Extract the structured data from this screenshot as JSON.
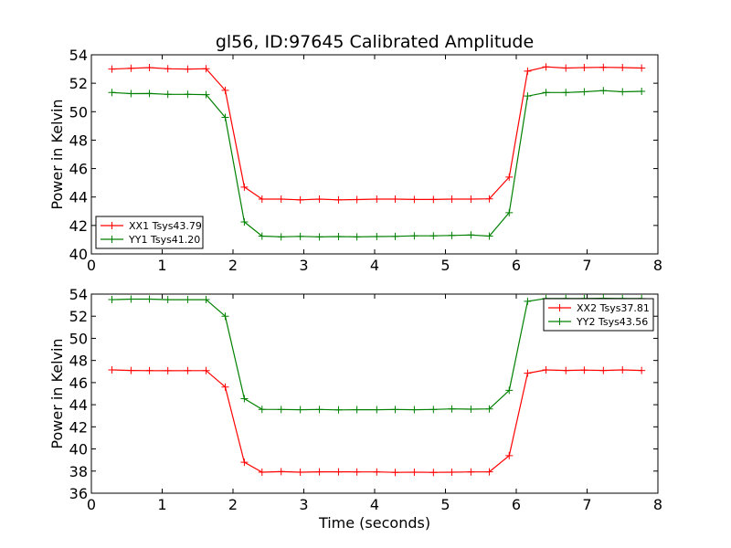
{
  "colors": {
    "red": "#ff0000",
    "green": "#008000",
    "background": "#ffffff",
    "axis": "#000000"
  },
  "chart_data": [
    {
      "type": "line",
      "title": "gl56, ID:97645 Calibrated Amplitude",
      "xlabel": "",
      "ylabel": "Power in Kelvin",
      "xlim": [
        0,
        8
      ],
      "ylim": [
        40,
        54
      ],
      "xticks": [
        "0",
        "1",
        "2",
        "3",
        "4",
        "5",
        "6",
        "7",
        "8"
      ],
      "yticks": [
        "40",
        "42",
        "44",
        "46",
        "48",
        "50",
        "52",
        "54"
      ],
      "legend_position": "lower-left",
      "grid": false,
      "x": [
        0.29,
        0.56,
        0.82,
        1.08,
        1.36,
        1.62,
        1.89,
        2.16,
        2.41,
        2.68,
        2.95,
        3.22,
        3.49,
        3.75,
        4.03,
        4.29,
        4.56,
        4.83,
        5.09,
        5.36,
        5.62,
        5.9,
        6.16,
        6.42,
        6.7,
        6.96,
        7.23,
        7.5,
        7.77
      ],
      "series": [
        {
          "name": "XX1 Tsys43.79",
          "color": "#ff0000",
          "values": [
            53.0,
            53.05,
            53.1,
            53.02,
            53.0,
            53.02,
            51.5,
            44.7,
            43.85,
            43.85,
            43.8,
            43.85,
            43.8,
            43.82,
            43.85,
            43.85,
            43.83,
            43.83,
            43.85,
            43.85,
            43.87,
            45.4,
            52.85,
            53.15,
            53.07,
            53.1,
            53.12,
            53.1,
            53.07
          ]
        },
        {
          "name": "YY1 Tsys41.20",
          "color": "#008000",
          "values": [
            51.35,
            51.27,
            51.28,
            51.22,
            51.22,
            51.2,
            49.6,
            42.25,
            41.25,
            41.2,
            41.23,
            41.2,
            41.22,
            41.2,
            41.22,
            41.23,
            41.27,
            41.27,
            41.3,
            41.33,
            41.25,
            42.9,
            51.1,
            51.35,
            51.35,
            51.4,
            51.48,
            51.4,
            51.43
          ]
        }
      ]
    },
    {
      "type": "line",
      "title": "",
      "xlabel": "Time (seconds)",
      "ylabel": "Power in Kelvin",
      "xlim": [
        0,
        8
      ],
      "ylim": [
        36,
        54
      ],
      "xticks": [
        "0",
        "1",
        "2",
        "3",
        "4",
        "5",
        "6",
        "7",
        "8"
      ],
      "yticks": [
        "36",
        "38",
        "40",
        "42",
        "44",
        "46",
        "48",
        "50",
        "52",
        "54"
      ],
      "legend_position": "upper-right",
      "grid": false,
      "x": [
        0.29,
        0.56,
        0.82,
        1.08,
        1.36,
        1.62,
        1.89,
        2.16,
        2.41,
        2.68,
        2.95,
        3.22,
        3.49,
        3.75,
        4.03,
        4.29,
        4.56,
        4.83,
        5.09,
        5.36,
        5.62,
        5.9,
        6.16,
        6.42,
        6.7,
        6.96,
        7.23,
        7.5,
        7.77
      ],
      "series": [
        {
          "name": "XX2 Tsys37.81",
          "color": "#ff0000",
          "values": [
            47.15,
            47.1,
            47.08,
            47.07,
            47.08,
            47.08,
            45.6,
            38.8,
            37.9,
            37.95,
            37.9,
            37.93,
            37.93,
            37.92,
            37.92,
            37.88,
            37.9,
            37.88,
            37.9,
            37.92,
            37.93,
            39.4,
            46.85,
            47.15,
            47.1,
            47.13,
            47.1,
            47.15,
            47.1
          ]
        },
        {
          "name": "YY2 Tsys43.56",
          "color": "#008000",
          "values": [
            53.5,
            53.55,
            53.55,
            53.5,
            53.5,
            53.5,
            52.0,
            44.55,
            43.58,
            43.57,
            43.55,
            43.57,
            43.53,
            43.55,
            43.55,
            43.57,
            43.55,
            43.57,
            43.62,
            43.6,
            43.62,
            45.3,
            53.35,
            53.6,
            53.6,
            53.6,
            53.62,
            53.6,
            53.6
          ]
        }
      ]
    }
  ]
}
